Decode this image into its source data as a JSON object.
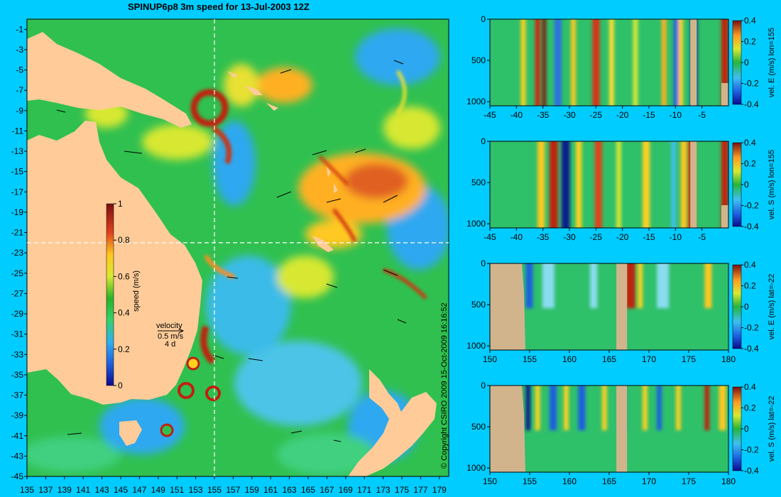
{
  "title": "SPINUP6p8 3m speed for 13-Jul-2003 12Z",
  "copyright": "© Copyright CSIRO 2009  15-Oct-2009 16:16:52",
  "colors": {
    "background": "#00ccff",
    "land": "#ffcc99",
    "section_land": "#d2b48c"
  },
  "chart_data": [
    {
      "type": "heatmap",
      "name": "map",
      "title": "SPINUP6p8 3m speed for 13-Jul-2003 12Z",
      "x_ticks": [
        "135",
        "137",
        "139",
        "141",
        "143",
        "145",
        "147",
        "149",
        "151",
        "153",
        "155",
        "157",
        "159",
        "161",
        "163",
        "165",
        "167",
        "169",
        "171",
        "173",
        "175",
        "177",
        "179"
      ],
      "y_ticks": [
        "-1",
        "-3",
        "-5",
        "-7",
        "-9",
        "-11",
        "-13",
        "-15",
        "-17",
        "-19",
        "-21",
        "-23",
        "-25",
        "-27",
        "-29",
        "-31",
        "-33",
        "-35",
        "-37",
        "-39",
        "-41",
        "-43",
        "-45"
      ],
      "xlim": [
        135,
        180
      ],
      "ylim": [
        -45,
        0
      ],
      "section_lines": {
        "lon": 155,
        "lat": -22
      },
      "colorbar": {
        "label": "speed (m/s)",
        "ticks": [
          "1",
          "0.8",
          "0.6",
          "0.4",
          "0.2",
          "0"
        ],
        "range": [
          0,
          1
        ]
      },
      "legend": {
        "label": "velocity",
        "speed": "0.5 m/s",
        "duration": "4 d"
      }
    },
    {
      "type": "heatmap",
      "name": "panel-1",
      "x_ticks": [
        "-45",
        "-40",
        "-35",
        "-30",
        "-25",
        "-20",
        "-15",
        "-10",
        "-5"
      ],
      "y_ticks": [
        "0",
        "500",
        "1000"
      ],
      "xlim": [
        -45,
        0
      ],
      "ylim": [
        1050,
        0
      ],
      "colorbar": {
        "label": "vel. E (m/s) lon=155",
        "ticks": [
          "0.4",
          "0.2",
          "0",
          "-0.2",
          "-0.4"
        ],
        "range": [
          -0.4,
          0.4
        ]
      }
    },
    {
      "type": "heatmap",
      "name": "panel-2",
      "x_ticks": [
        "-45",
        "-40",
        "-35",
        "-30",
        "-25",
        "-20",
        "-15",
        "-10",
        "-5"
      ],
      "y_ticks": [
        "0",
        "500",
        "1000"
      ],
      "xlim": [
        -45,
        0
      ],
      "ylim": [
        1050,
        0
      ],
      "colorbar": {
        "label": "vel. S (m/s) lon=155",
        "ticks": [
          "0.4",
          "0.2",
          "0",
          "-0.2",
          "-0.4"
        ],
        "range": [
          -0.4,
          0.4
        ]
      }
    },
    {
      "type": "heatmap",
      "name": "panel-3",
      "x_ticks": [
        "150",
        "155",
        "160",
        "165",
        "170",
        "175",
        "180"
      ],
      "y_ticks": [
        "0",
        "500",
        "1000"
      ],
      "xlim": [
        150,
        180
      ],
      "ylim": [
        1050,
        0
      ],
      "colorbar": {
        "label": "vel. E (m/s) lat=-22",
        "ticks": [
          "0.4",
          "0.2",
          "0",
          "-0.2",
          "-0.4"
        ],
        "range": [
          -0.4,
          0.4
        ]
      }
    },
    {
      "type": "heatmap",
      "name": "panel-4",
      "x_ticks": [
        "150",
        "155",
        "160",
        "165",
        "170",
        "175",
        "180"
      ],
      "y_ticks": [
        "0",
        "500",
        "1000"
      ],
      "xlim": [
        150,
        180
      ],
      "ylim": [
        1050,
        0
      ],
      "colorbar": {
        "label": "vel. S (m/s) lat=-22",
        "ticks": [
          "0.4",
          "0.2",
          "0",
          "-0.2",
          "-0.4"
        ],
        "range": [
          -0.4,
          0.4
        ]
      }
    }
  ]
}
